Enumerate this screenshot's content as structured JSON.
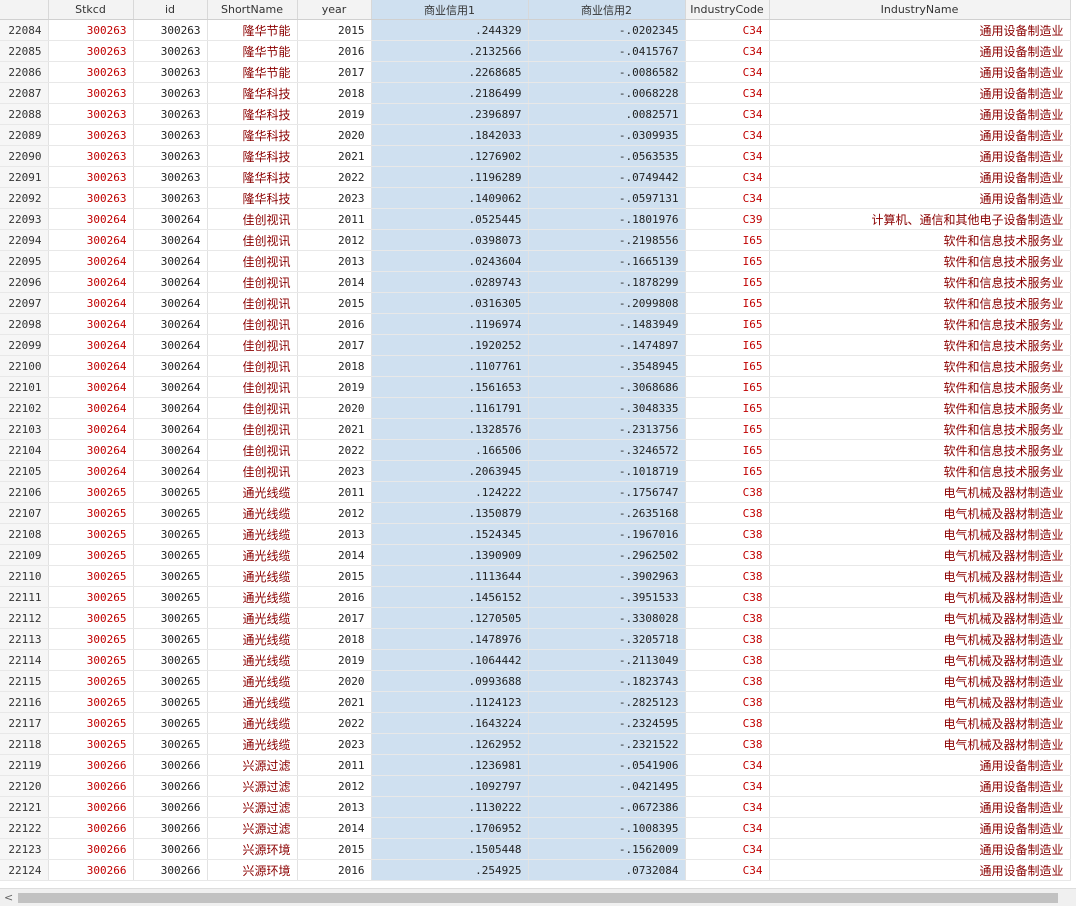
{
  "table": {
    "columns": [
      "Stkcd",
      "id",
      "ShortName",
      "year",
      "商业信用1",
      "商业信用2",
      "IndustryCode",
      "IndustryName"
    ],
    "rows": [
      [
        "22084",
        "300263",
        "300263",
        "隆华节能",
        "2015",
        ".244329",
        "-.0202345",
        "C34",
        "通用设备制造业"
      ],
      [
        "22085",
        "300263",
        "300263",
        "隆华节能",
        "2016",
        ".2132566",
        "-.0415767",
        "C34",
        "通用设备制造业"
      ],
      [
        "22086",
        "300263",
        "300263",
        "隆华节能",
        "2017",
        ".2268685",
        "-.0086582",
        "C34",
        "通用设备制造业"
      ],
      [
        "22087",
        "300263",
        "300263",
        "隆华科技",
        "2018",
        ".2186499",
        "-.0068228",
        "C34",
        "通用设备制造业"
      ],
      [
        "22088",
        "300263",
        "300263",
        "隆华科技",
        "2019",
        ".2396897",
        ".0082571",
        "C34",
        "通用设备制造业"
      ],
      [
        "22089",
        "300263",
        "300263",
        "隆华科技",
        "2020",
        ".1842033",
        "-.0309935",
        "C34",
        "通用设备制造业"
      ],
      [
        "22090",
        "300263",
        "300263",
        "隆华科技",
        "2021",
        ".1276902",
        "-.0563535",
        "C34",
        "通用设备制造业"
      ],
      [
        "22091",
        "300263",
        "300263",
        "隆华科技",
        "2022",
        ".1196289",
        "-.0749442",
        "C34",
        "通用设备制造业"
      ],
      [
        "22092",
        "300263",
        "300263",
        "隆华科技",
        "2023",
        ".1409062",
        "-.0597131",
        "C34",
        "通用设备制造业"
      ],
      [
        "22093",
        "300264",
        "300264",
        "佳创视讯",
        "2011",
        ".0525445",
        "-.1801976",
        "C39",
        "计算机、通信和其他电子设备制造业"
      ],
      [
        "22094",
        "300264",
        "300264",
        "佳创视讯",
        "2012",
        ".0398073",
        "-.2198556",
        "I65",
        "软件和信息技术服务业"
      ],
      [
        "22095",
        "300264",
        "300264",
        "佳创视讯",
        "2013",
        ".0243604",
        "-.1665139",
        "I65",
        "软件和信息技术服务业"
      ],
      [
        "22096",
        "300264",
        "300264",
        "佳创视讯",
        "2014",
        ".0289743",
        "-.1878299",
        "I65",
        "软件和信息技术服务业"
      ],
      [
        "22097",
        "300264",
        "300264",
        "佳创视讯",
        "2015",
        ".0316305",
        "-.2099808",
        "I65",
        "软件和信息技术服务业"
      ],
      [
        "22098",
        "300264",
        "300264",
        "佳创视讯",
        "2016",
        ".1196974",
        "-.1483949",
        "I65",
        "软件和信息技术服务业"
      ],
      [
        "22099",
        "300264",
        "300264",
        "佳创视讯",
        "2017",
        ".1920252",
        "-.1474897",
        "I65",
        "软件和信息技术服务业"
      ],
      [
        "22100",
        "300264",
        "300264",
        "佳创视讯",
        "2018",
        ".1107761",
        "-.3548945",
        "I65",
        "软件和信息技术服务业"
      ],
      [
        "22101",
        "300264",
        "300264",
        "佳创视讯",
        "2019",
        ".1561653",
        "-.3068686",
        "I65",
        "软件和信息技术服务业"
      ],
      [
        "22102",
        "300264",
        "300264",
        "佳创视讯",
        "2020",
        ".1161791",
        "-.3048335",
        "I65",
        "软件和信息技术服务业"
      ],
      [
        "22103",
        "300264",
        "300264",
        "佳创视讯",
        "2021",
        ".1328576",
        "-.2313756",
        "I65",
        "软件和信息技术服务业"
      ],
      [
        "22104",
        "300264",
        "300264",
        "佳创视讯",
        "2022",
        ".166506",
        "-.3246572",
        "I65",
        "软件和信息技术服务业"
      ],
      [
        "22105",
        "300264",
        "300264",
        "佳创视讯",
        "2023",
        ".2063945",
        "-.1018719",
        "I65",
        "软件和信息技术服务业"
      ],
      [
        "22106",
        "300265",
        "300265",
        "通光线缆",
        "2011",
        ".124222",
        "-.1756747",
        "C38",
        "电气机械及器材制造业"
      ],
      [
        "22107",
        "300265",
        "300265",
        "通光线缆",
        "2012",
        ".1350879",
        "-.2635168",
        "C38",
        "电气机械及器材制造业"
      ],
      [
        "22108",
        "300265",
        "300265",
        "通光线缆",
        "2013",
        ".1524345",
        "-.1967016",
        "C38",
        "电气机械及器材制造业"
      ],
      [
        "22109",
        "300265",
        "300265",
        "通光线缆",
        "2014",
        ".1390909",
        "-.2962502",
        "C38",
        "电气机械及器材制造业"
      ],
      [
        "22110",
        "300265",
        "300265",
        "通光线缆",
        "2015",
        ".1113644",
        "-.3902963",
        "C38",
        "电气机械及器材制造业"
      ],
      [
        "22111",
        "300265",
        "300265",
        "通光线缆",
        "2016",
        ".1456152",
        "-.3951533",
        "C38",
        "电气机械及器材制造业"
      ],
      [
        "22112",
        "300265",
        "300265",
        "通光线缆",
        "2017",
        ".1270505",
        "-.3308028",
        "C38",
        "电气机械及器材制造业"
      ],
      [
        "22113",
        "300265",
        "300265",
        "通光线缆",
        "2018",
        ".1478976",
        "-.3205718",
        "C38",
        "电气机械及器材制造业"
      ],
      [
        "22114",
        "300265",
        "300265",
        "通光线缆",
        "2019",
        ".1064442",
        "-.2113049",
        "C38",
        "电气机械及器材制造业"
      ],
      [
        "22115",
        "300265",
        "300265",
        "通光线缆",
        "2020",
        ".0993688",
        "-.1823743",
        "C38",
        "电气机械及器材制造业"
      ],
      [
        "22116",
        "300265",
        "300265",
        "通光线缆",
        "2021",
        ".1124123",
        "-.2825123",
        "C38",
        "电气机械及器材制造业"
      ],
      [
        "22117",
        "300265",
        "300265",
        "通光线缆",
        "2022",
        ".1643224",
        "-.2324595",
        "C38",
        "电气机械及器材制造业"
      ],
      [
        "22118",
        "300265",
        "300265",
        "通光线缆",
        "2023",
        ".1262952",
        "-.2321522",
        "C38",
        "电气机械及器材制造业"
      ],
      [
        "22119",
        "300266",
        "300266",
        "兴源过滤",
        "2011",
        ".1236981",
        "-.0541906",
        "C34",
        "通用设备制造业"
      ],
      [
        "22120",
        "300266",
        "300266",
        "兴源过滤",
        "2012",
        ".1092797",
        "-.0421495",
        "C34",
        "通用设备制造业"
      ],
      [
        "22121",
        "300266",
        "300266",
        "兴源过滤",
        "2013",
        ".1130222",
        "-.0672386",
        "C34",
        "通用设备制造业"
      ],
      [
        "22122",
        "300266",
        "300266",
        "兴源过滤",
        "2014",
        ".1706952",
        "-.1008395",
        "C34",
        "通用设备制造业"
      ],
      [
        "22123",
        "300266",
        "300266",
        "兴源环境",
        "2015",
        ".1505448",
        "-.1562009",
        "C34",
        "通用设备制造业"
      ],
      [
        "22124",
        "300266",
        "300266",
        "兴源环境",
        "2016",
        ".254925",
        ".0732084",
        "C34",
        "通用设备制造业"
      ]
    ]
  }
}
